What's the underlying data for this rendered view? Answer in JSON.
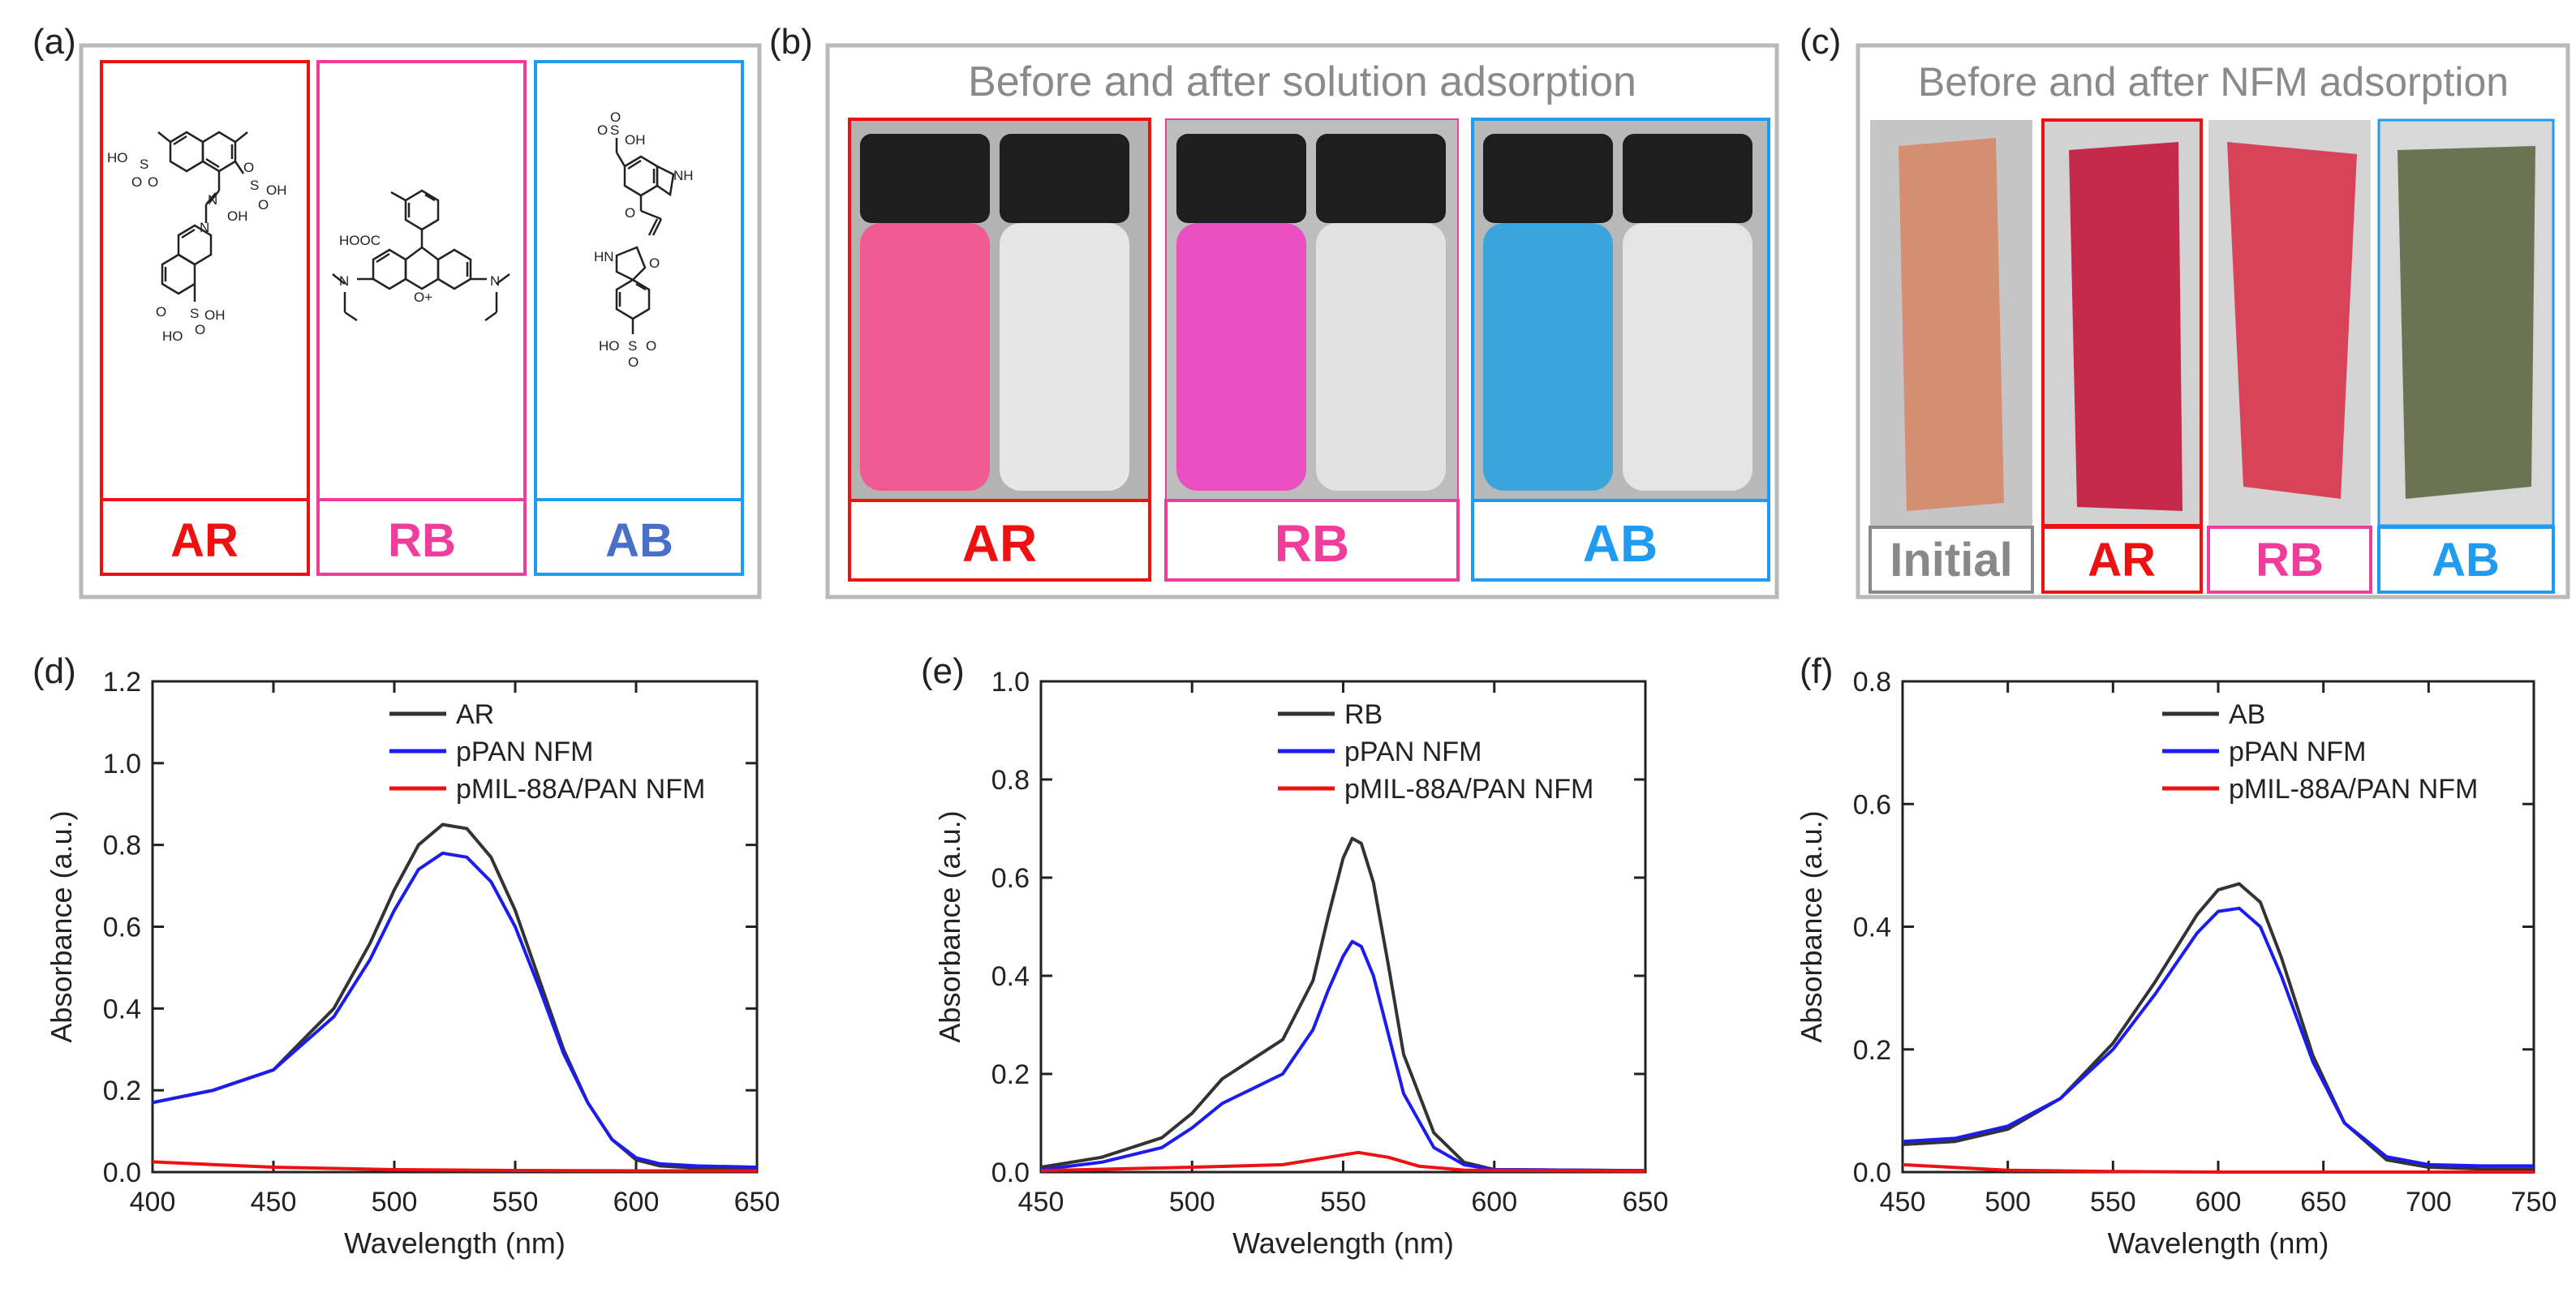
{
  "panels": {
    "a": {
      "letter": "(a)",
      "dyes": [
        {
          "label": "AR",
          "color": "#ee1111",
          "structure_labels": [
            "HO",
            "S",
            "O",
            "O",
            "S",
            "OH",
            "O",
            "O",
            "OH",
            "N",
            "N",
            "S",
            "OH",
            "HO",
            "O",
            "O"
          ]
        },
        {
          "label": "RB",
          "color": "#ee3d9a",
          "structure_labels": [
            "HOOC",
            "N",
            "O+",
            "N"
          ]
        },
        {
          "label": "AB",
          "color": "#4a6fc9",
          "structure_labels": [
            "S",
            "OH",
            "O",
            "O",
            "NH",
            "O",
            "HN",
            "O",
            "HO",
            "S",
            "O",
            "O"
          ]
        }
      ]
    },
    "b": {
      "letter": "(b)",
      "title": "Before and after solution adsorption",
      "samples": [
        {
          "label": "AR",
          "color": "#ee1111",
          "before_color": "#ef5a92"
        },
        {
          "label": "RB",
          "color": "#ee3d9a",
          "before_color": "#ea4fc2"
        },
        {
          "label": "AB",
          "color": "#1f9bf0",
          "before_color": "#3aa5dc"
        }
      ]
    },
    "c": {
      "letter": "(c)",
      "title": "Before and after NFM adsorption",
      "samples": [
        {
          "label": "Initial",
          "color": "#888888",
          "membrane_color": "#d68e72"
        },
        {
          "label": "AR",
          "color": "#ee1111",
          "membrane_color": "#c62a4a"
        },
        {
          "label": "RB",
          "color": "#ee3d9a",
          "membrane_color": "#d9435a"
        },
        {
          "label": "AB",
          "color": "#1f9bf0",
          "membrane_color": "#6b7353"
        }
      ]
    }
  },
  "chart_data": [
    {
      "type": "line",
      "letter": "(d)",
      "xlabel": "Wavelength (nm)",
      "ylabel": "Absorbance (a.u.)",
      "xlim": [
        400,
        650
      ],
      "ylim": [
        0,
        1.2
      ],
      "xticks": [
        400,
        450,
        500,
        550,
        600,
        650
      ],
      "yticks": [
        0.0,
        0.2,
        0.4,
        0.6,
        0.8,
        1.0,
        1.2
      ],
      "legend_position": "top-right",
      "series": [
        {
          "name": "AR",
          "color": "#333333",
          "x": [
            400,
            425,
            450,
            475,
            490,
            500,
            510,
            520,
            530,
            540,
            550,
            560,
            570,
            580,
            590,
            600,
            610,
            625,
            650
          ],
          "y": [
            0.17,
            0.2,
            0.25,
            0.4,
            0.56,
            0.69,
            0.8,
            0.85,
            0.84,
            0.77,
            0.64,
            0.47,
            0.3,
            0.17,
            0.08,
            0.03,
            0.015,
            0.01,
            0.008
          ]
        },
        {
          "name": "pPAN NFM",
          "color": "#1c1cf0",
          "x": [
            400,
            425,
            450,
            475,
            490,
            500,
            510,
            520,
            530,
            540,
            550,
            560,
            570,
            580,
            590,
            600,
            610,
            625,
            650
          ],
          "y": [
            0.17,
            0.2,
            0.25,
            0.38,
            0.52,
            0.64,
            0.74,
            0.78,
            0.77,
            0.71,
            0.6,
            0.45,
            0.29,
            0.17,
            0.08,
            0.035,
            0.02,
            0.015,
            0.012
          ]
        },
        {
          "name": "pMIL-88A/PAN NFM",
          "color": "#ee1111",
          "x": [
            400,
            450,
            500,
            550,
            600,
            650
          ],
          "y": [
            0.025,
            0.012,
            0.006,
            0.004,
            0.003,
            0.003
          ]
        }
      ]
    },
    {
      "type": "line",
      "letter": "(e)",
      "xlabel": "Wavelength (nm)",
      "ylabel": "Absorbance (a.u.)",
      "xlim": [
        450,
        650
      ],
      "ylim": [
        0,
        1.0
      ],
      "xticks": [
        450,
        500,
        550,
        600,
        650
      ],
      "yticks": [
        0.0,
        0.2,
        0.4,
        0.6,
        0.8,
        1.0
      ],
      "legend_position": "top-right",
      "series": [
        {
          "name": "RB",
          "color": "#333333",
          "x": [
            450,
            470,
            490,
            500,
            510,
            520,
            530,
            540,
            545,
            550,
            553,
            556,
            560,
            565,
            570,
            580,
            590,
            600,
            650
          ],
          "y": [
            0.01,
            0.03,
            0.07,
            0.12,
            0.19,
            0.23,
            0.27,
            0.39,
            0.52,
            0.64,
            0.68,
            0.67,
            0.59,
            0.42,
            0.24,
            0.08,
            0.02,
            0.005,
            0.003
          ]
        },
        {
          "name": "pPAN NFM",
          "color": "#1c1cf0",
          "x": [
            450,
            470,
            490,
            500,
            510,
            520,
            530,
            540,
            545,
            550,
            553,
            556,
            560,
            565,
            570,
            580,
            590,
            600,
            650
          ],
          "y": [
            0.005,
            0.02,
            0.05,
            0.09,
            0.14,
            0.17,
            0.2,
            0.29,
            0.37,
            0.44,
            0.47,
            0.46,
            0.4,
            0.28,
            0.16,
            0.05,
            0.015,
            0.005,
            0.003
          ]
        },
        {
          "name": "pMIL-88A/PAN NFM",
          "color": "#ee1111",
          "x": [
            450,
            500,
            530,
            545,
            555,
            565,
            575,
            590,
            650
          ],
          "y": [
            0.003,
            0.01,
            0.015,
            0.03,
            0.04,
            0.03,
            0.012,
            0.004,
            0.002
          ]
        }
      ]
    },
    {
      "type": "line",
      "letter": "(f)",
      "xlabel": "Wavelength (nm)",
      "ylabel": "Absorbance (a.u.)",
      "xlim": [
        450,
        750
      ],
      "ylim": [
        0,
        0.8
      ],
      "xticks": [
        450,
        500,
        550,
        600,
        650,
        700,
        750
      ],
      "yticks": [
        0.0,
        0.2,
        0.4,
        0.6,
        0.8
      ],
      "legend_position": "top-right",
      "series": [
        {
          "name": "AB",
          "color": "#333333",
          "x": [
            450,
            475,
            500,
            525,
            550,
            570,
            590,
            600,
            610,
            620,
            630,
            645,
            660,
            680,
            700,
            725,
            750
          ],
          "y": [
            0.045,
            0.05,
            0.07,
            0.12,
            0.21,
            0.31,
            0.42,
            0.46,
            0.47,
            0.44,
            0.35,
            0.19,
            0.08,
            0.02,
            0.008,
            0.005,
            0.005
          ]
        },
        {
          "name": "pPAN NFM",
          "color": "#1c1cf0",
          "x": [
            450,
            475,
            500,
            525,
            550,
            570,
            590,
            600,
            610,
            620,
            630,
            645,
            660,
            680,
            700,
            725,
            750
          ],
          "y": [
            0.05,
            0.055,
            0.075,
            0.12,
            0.2,
            0.29,
            0.39,
            0.425,
            0.43,
            0.4,
            0.32,
            0.18,
            0.08,
            0.025,
            0.012,
            0.01,
            0.01
          ]
        },
        {
          "name": "pMIL-88A/PAN NFM",
          "color": "#ee1111",
          "x": [
            450,
            500,
            550,
            600,
            650,
            700,
            750
          ],
          "y": [
            0.012,
            0.003,
            0.001,
            0.0,
            0.0,
            0.0,
            0.0
          ]
        }
      ]
    }
  ]
}
